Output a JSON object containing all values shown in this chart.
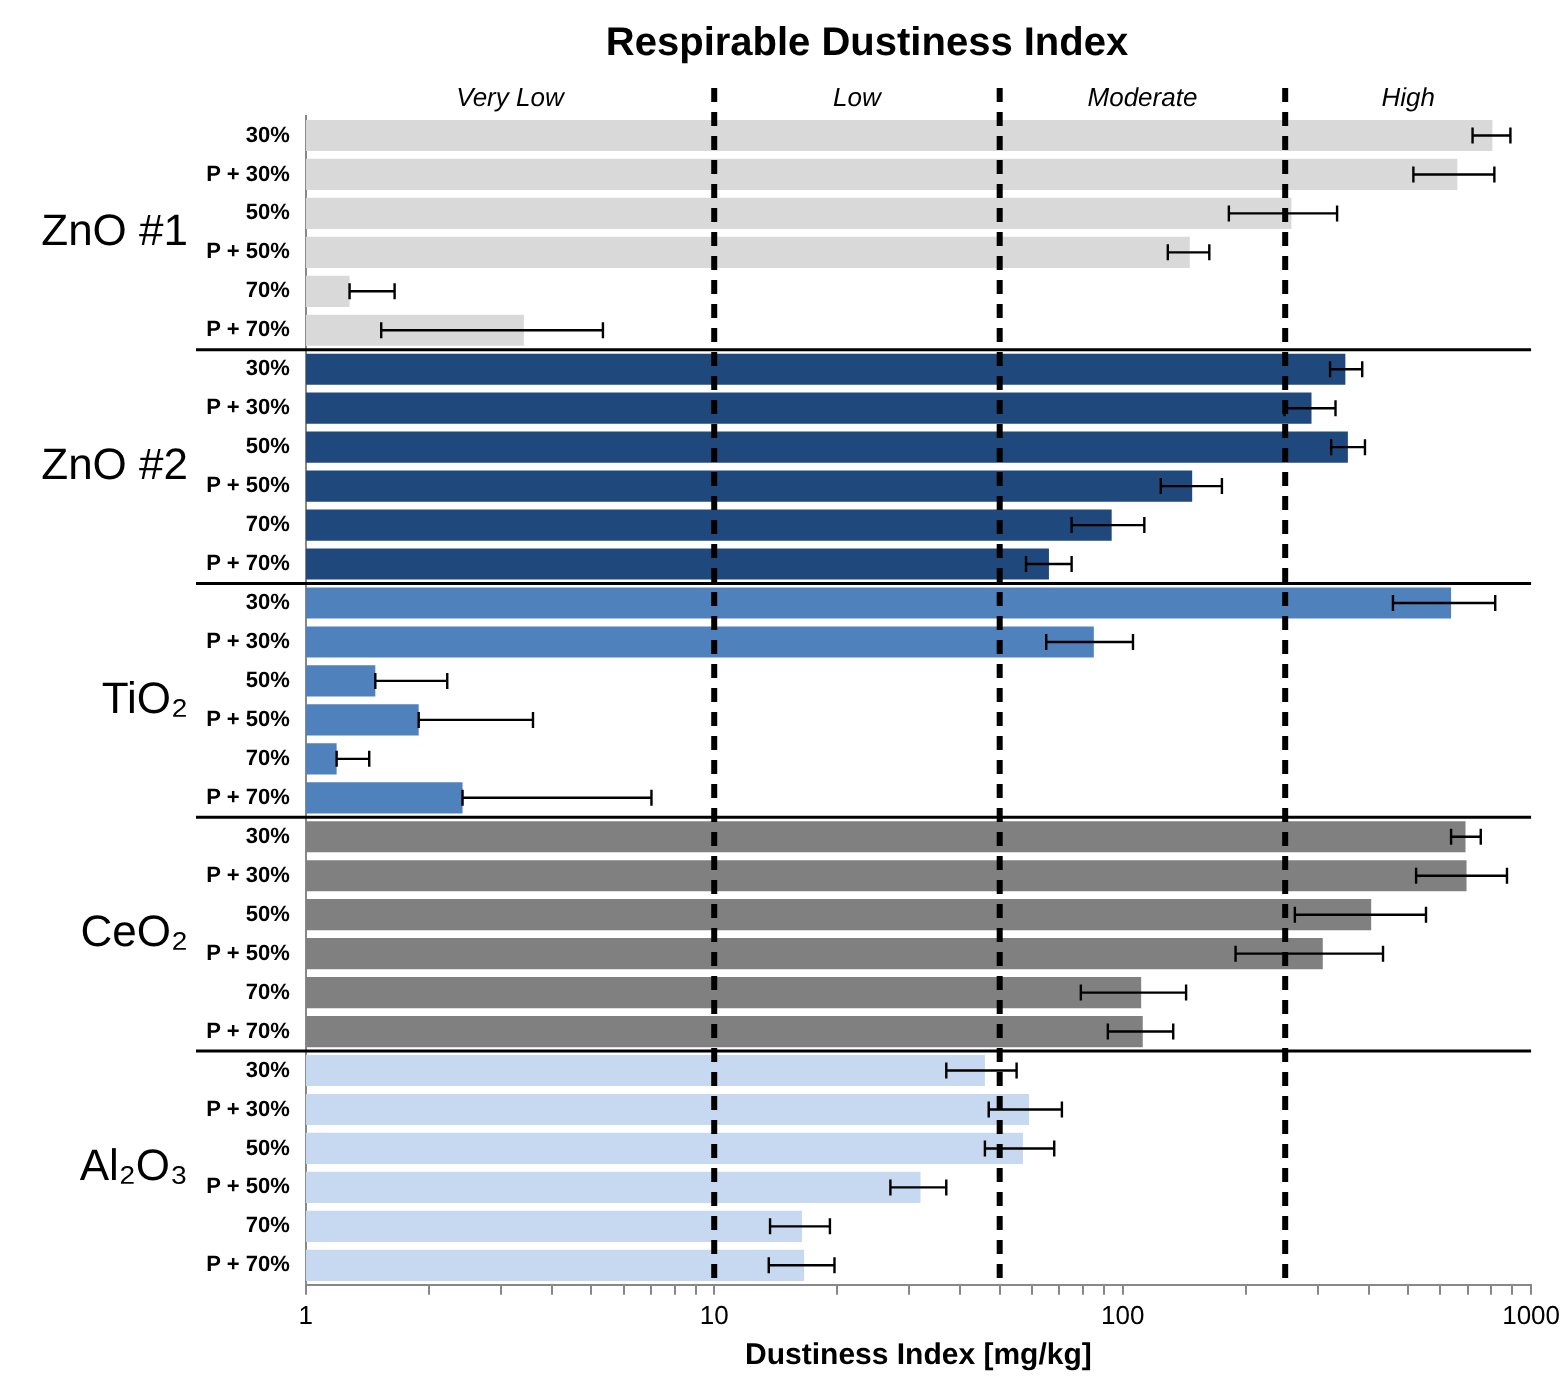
{
  "chart_data": {
    "type": "bar",
    "orientation": "horizontal",
    "title": "Respirable Dustiness Index",
    "xlabel": "Dustiness Index [mg/kg]",
    "categories": [
      "30%",
      "P + 30%",
      "50%",
      "P + 50%",
      "70%",
      "P + 70%",
      "30%",
      "P + 30%",
      "50%",
      "P + 50%",
      "70%",
      "P + 70%",
      "30%",
      "P + 30%",
      "50%",
      "P + 50%",
      "70%",
      "P + 70%",
      "30%",
      "P + 30%",
      "50%",
      "P + 50%",
      "70%",
      "P + 70%",
      "30%",
      "P + 30%",
      "50%",
      "P + 50%",
      "70%",
      "P + 70%"
    ],
    "series": [
      {
        "name": "ZnO #1",
        "color": "#d9d9d9",
        "values": [
          804,
          660,
          259,
          146,
          1.28,
          3.42,
          null,
          null,
          null,
          null,
          null,
          null,
          null,
          null,
          null,
          null,
          null,
          null,
          null,
          null,
          null,
          null,
          null,
          null,
          null,
          null,
          null,
          null,
          null,
          null
        ],
        "errors": [
          [
            719,
            890
          ],
          [
            515,
            813
          ],
          [
            182,
            335
          ],
          [
            129,
            163
          ],
          [
            1.28,
            1.65
          ],
          [
            1.53,
            5.34
          ],
          null,
          null,
          null,
          null,
          null,
          null,
          null,
          null,
          null,
          null,
          null,
          null,
          null,
          null,
          null,
          null,
          null,
          null,
          null,
          null,
          null,
          null,
          null,
          null
        ]
      },
      {
        "name": "ZnO #2",
        "color": "#1f497d",
        "values": [
          null,
          null,
          null,
          null,
          null,
          null,
          351,
          290,
          356,
          148,
          94,
          66,
          null,
          null,
          null,
          null,
          null,
          null,
          null,
          null,
          null,
          null,
          null,
          null,
          null,
          null,
          null,
          null,
          null,
          null
        ],
        "errors": [
          null,
          null,
          null,
          null,
          null,
          null,
          [
            322,
            386
          ],
          [
            249,
            332
          ],
          [
            324,
            392
          ],
          [
            124,
            175
          ],
          [
            75,
            113
          ],
          [
            58,
            75
          ],
          null,
          null,
          null,
          null,
          null,
          null,
          null,
          null,
          null,
          null,
          null,
          null,
          null,
          null,
          null,
          null,
          null,
          null
        ]
      },
      {
        "name": "TiO₂",
        "color": "#4f81bd",
        "values": [
          null,
          null,
          null,
          null,
          null,
          null,
          null,
          null,
          null,
          null,
          null,
          null,
          637,
          85,
          1.48,
          1.89,
          1.19,
          2.42,
          null,
          null,
          null,
          null,
          null,
          null,
          null,
          null,
          null,
          null,
          null,
          null
        ],
        "errors": [
          null,
          null,
          null,
          null,
          null,
          null,
          null,
          null,
          null,
          null,
          null,
          null,
          [
            459,
            817
          ],
          [
            65,
            106
          ],
          [
            1.48,
            2.22
          ],
          [
            1.89,
            3.6
          ],
          [
            1.19,
            1.43
          ],
          [
            2.42,
            7.02
          ],
          null,
          null,
          null,
          null,
          null,
          null,
          null,
          null,
          null,
          null,
          null,
          null
        ]
      },
      {
        "name": "CeO₂",
        "color": "#808080",
        "values": [
          null,
          null,
          null,
          null,
          null,
          null,
          null,
          null,
          null,
          null,
          null,
          null,
          null,
          null,
          null,
          null,
          null,
          null,
          691,
          695,
          406,
          309,
          111,
          112,
          null,
          null,
          null,
          null,
          null,
          null
        ],
        "errors": [
          null,
          null,
          null,
          null,
          null,
          null,
          null,
          null,
          null,
          null,
          null,
          null,
          null,
          null,
          null,
          null,
          null,
          null,
          [
            637,
            753
          ],
          [
            523,
            873
          ],
          [
            264,
            553
          ],
          [
            189,
            434
          ],
          [
            79,
            143
          ],
          [
            92,
            133
          ],
          null,
          null,
          null,
          null,
          null,
          null
        ]
      },
      {
        "name": "Al₂O₃",
        "color": "#c6d9f1",
        "values": [
          null,
          null,
          null,
          null,
          null,
          null,
          null,
          null,
          null,
          null,
          null,
          null,
          null,
          null,
          null,
          null,
          null,
          null,
          null,
          null,
          null,
          null,
          null,
          null,
          46,
          59,
          57,
          32,
          16.4,
          16.6
        ],
        "errors": [
          null,
          null,
          null,
          null,
          null,
          null,
          null,
          null,
          null,
          null,
          null,
          null,
          null,
          null,
          null,
          null,
          null,
          null,
          null,
          null,
          null,
          null,
          null,
          null,
          [
            37,
            55
          ],
          [
            47,
            71
          ],
          [
            46,
            68
          ],
          [
            27,
            37
          ],
          [
            13.7,
            19.2
          ],
          [
            13.6,
            19.7
          ]
        ]
      }
    ],
    "log": "x",
    "xlim": [
      1,
      1000
    ],
    "xticks": [
      1,
      {
        "value": 2,
        "label": null
      },
      {
        "value": 3,
        "label": null
      },
      {
        "value": 4,
        "label": null
      },
      {
        "value": 5,
        "label": null
      },
      {
        "value": 6,
        "label": null
      },
      {
        "value": 7,
        "label": null
      },
      {
        "value": 8,
        "label": null
      },
      {
        "value": 9,
        "label": null
      },
      10,
      {
        "value": 20,
        "label": null
      },
      {
        "value": 30,
        "label": null
      },
      {
        "value": 40,
        "label": null
      },
      {
        "value": 50,
        "label": null
      },
      {
        "value": 60,
        "label": null
      },
      {
        "value": 70,
        "label": null
      },
      {
        "value": 80,
        "label": null
      },
      {
        "value": 90,
        "label": null
      },
      100,
      {
        "value": 200,
        "label": null
      },
      {
        "value": 300,
        "label": null
      },
      {
        "value": 400,
        "label": null
      },
      {
        "value": 500,
        "label": null
      },
      {
        "value": 600,
        "label": null
      },
      {
        "value": 700,
        "label": null
      },
      {
        "value": 800,
        "label": null
      },
      {
        "value": 900,
        "label": null
      },
      1000
    ],
    "ref_lines": [
      {
        "axis": "x",
        "value": 10,
        "line_style": "dashed",
        "color": "#000000"
      },
      {
        "axis": "x",
        "value": 50,
        "line_style": "dashed",
        "color": "#000000"
      },
      {
        "axis": "x",
        "value": 250,
        "line_style": "dashed",
        "color": "#000000"
      }
    ],
    "annotations": [
      "Very Low",
      "Low",
      "Moderate",
      "High"
    ],
    "grid": false,
    "legend": false
  }
}
